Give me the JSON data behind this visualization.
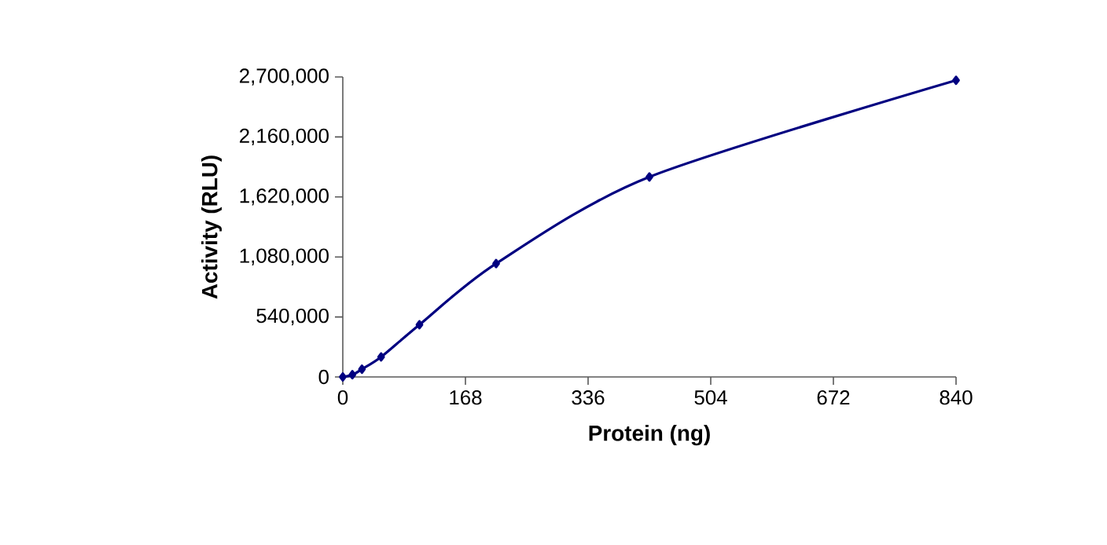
{
  "chart_data": {
    "type": "line",
    "xlabel": "Protein (ng)",
    "ylabel": "Activity (RLU)",
    "x": [
      0,
      13.125,
      26.25,
      52.5,
      105,
      210,
      420,
      840
    ],
    "series": [
      {
        "color": "#000080",
        "values": [
          0,
          20000,
          70000,
          180000,
          470000,
          1020000,
          1800000,
          2670000
        ]
      }
    ],
    "xlim": [
      0,
      840
    ],
    "xticks": [
      0,
      168,
      336,
      504,
      672,
      840
    ],
    "ylim": [
      0,
      2700000
    ],
    "yticks": [
      {
        "value": 0,
        "label": "0"
      },
      {
        "value": 540000,
        "label": "540,000"
      },
      {
        "value": 1080000,
        "label": "1,080,000"
      },
      {
        "value": 1620000,
        "label": "1,620,000"
      },
      {
        "value": 2160000,
        "label": "2,160,000"
      },
      {
        "value": 2700000,
        "label": "2,700,000"
      }
    ],
    "marker": "diamond",
    "line_style": "solid"
  }
}
